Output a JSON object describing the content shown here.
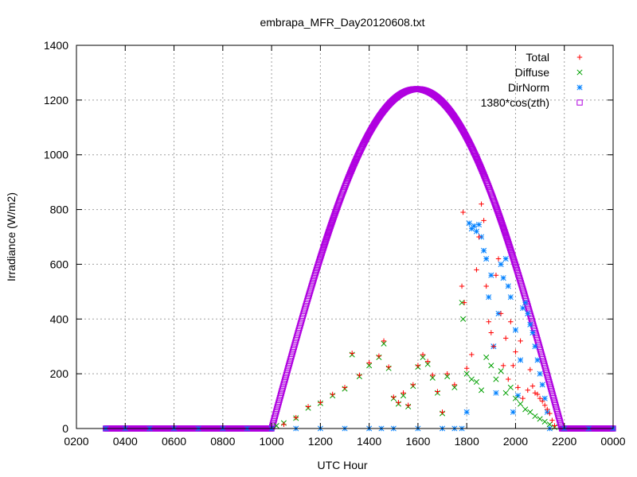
{
  "chart_data": {
    "type": "scatter",
    "title": "embrapa_MFR_Day20120608.txt",
    "xlabel": "UTC Hour",
    "ylabel": "Irradiance (W/m2)",
    "xlim": [
      2,
      24
    ],
    "ylim": [
      0,
      1400
    ],
    "xticks": [
      {
        "value": 2,
        "label": "0200"
      },
      {
        "value": 4,
        "label": "0400"
      },
      {
        "value": 6,
        "label": "0600"
      },
      {
        "value": 8,
        "label": "0800"
      },
      {
        "value": 10,
        "label": "1000"
      },
      {
        "value": 12,
        "label": "1200"
      },
      {
        "value": 14,
        "label": "1400"
      },
      {
        "value": 16,
        "label": "1600"
      },
      {
        "value": 18,
        "label": "1800"
      },
      {
        "value": 20,
        "label": "2000"
      },
      {
        "value": 22,
        "label": "2200"
      },
      {
        "value": 24,
        "label": "0000"
      }
    ],
    "yticks": [
      {
        "value": 0,
        "label": "0"
      },
      {
        "value": 200,
        "label": "200"
      },
      {
        "value": 400,
        "label": "400"
      },
      {
        "value": 600,
        "label": "600"
      },
      {
        "value": 800,
        "label": "800"
      },
      {
        "value": 1000,
        "label": "1000"
      },
      {
        "value": 1200,
        "label": "1200"
      },
      {
        "value": 1400,
        "label": "1400"
      }
    ],
    "grid": true,
    "legend_position": "top-right",
    "series": [
      {
        "name": "Total",
        "marker": "plus",
        "color": "#ff0000",
        "points": [
          [
            10.5,
            15
          ],
          [
            11.0,
            40
          ],
          [
            11.5,
            80
          ],
          [
            12.0,
            95
          ],
          [
            12.5,
            125
          ],
          [
            13.0,
            150
          ],
          [
            13.3,
            275
          ],
          [
            13.6,
            195
          ],
          [
            14.0,
            240
          ],
          [
            14.4,
            265
          ],
          [
            14.6,
            320
          ],
          [
            14.8,
            225
          ],
          [
            15.0,
            115
          ],
          [
            15.2,
            95
          ],
          [
            15.4,
            130
          ],
          [
            15.6,
            85
          ],
          [
            15.8,
            160
          ],
          [
            16.0,
            230
          ],
          [
            16.2,
            270
          ],
          [
            16.4,
            245
          ],
          [
            16.6,
            195
          ],
          [
            16.8,
            135
          ],
          [
            17.0,
            60
          ],
          [
            17.2,
            200
          ],
          [
            17.5,
            160
          ],
          [
            17.8,
            520
          ],
          [
            17.85,
            790
          ],
          [
            17.9,
            460
          ],
          [
            18.0,
            220
          ],
          [
            18.2,
            270
          ],
          [
            18.4,
            580
          ],
          [
            18.5,
            700
          ],
          [
            18.6,
            820
          ],
          [
            18.7,
            760
          ],
          [
            18.8,
            520
          ],
          [
            18.9,
            390
          ],
          [
            19.0,
            350
          ],
          [
            19.1,
            300
          ],
          [
            19.2,
            560
          ],
          [
            19.3,
            620
          ],
          [
            19.4,
            420
          ],
          [
            19.5,
            230
          ],
          [
            19.6,
            330
          ],
          [
            19.7,
            180
          ],
          [
            19.8,
            390
          ],
          [
            19.9,
            230
          ],
          [
            20.0,
            280
          ],
          [
            20.1,
            150
          ],
          [
            20.2,
            320
          ],
          [
            20.3,
            110
          ],
          [
            20.5,
            140
          ],
          [
            20.6,
            215
          ],
          [
            20.7,
            155
          ],
          [
            20.8,
            130
          ],
          [
            20.9,
            125
          ],
          [
            21.0,
            110
          ],
          [
            21.1,
            100
          ],
          [
            21.2,
            85
          ],
          [
            21.3,
            70
          ],
          [
            21.4,
            55
          ],
          [
            21.5,
            30
          ],
          [
            21.6,
            10
          ]
        ]
      },
      {
        "name": "Diffuse",
        "marker": "cross",
        "color": "#00a000",
        "points": [
          [
            10.2,
            10
          ],
          [
            10.5,
            20
          ],
          [
            11.0,
            38
          ],
          [
            11.5,
            75
          ],
          [
            12.0,
            92
          ],
          [
            12.5,
            120
          ],
          [
            13.0,
            145
          ],
          [
            13.3,
            270
          ],
          [
            13.6,
            190
          ],
          [
            14.0,
            230
          ],
          [
            14.4,
            260
          ],
          [
            14.6,
            310
          ],
          [
            14.8,
            220
          ],
          [
            15.0,
            110
          ],
          [
            15.2,
            90
          ],
          [
            15.4,
            120
          ],
          [
            15.6,
            80
          ],
          [
            15.8,
            155
          ],
          [
            16.0,
            225
          ],
          [
            16.2,
            260
          ],
          [
            16.4,
            235
          ],
          [
            16.6,
            185
          ],
          [
            16.8,
            130
          ],
          [
            17.0,
            55
          ],
          [
            17.2,
            190
          ],
          [
            17.5,
            150
          ],
          [
            17.8,
            460
          ],
          [
            17.85,
            400
          ],
          [
            18.0,
            200
          ],
          [
            18.2,
            180
          ],
          [
            18.4,
            170
          ],
          [
            18.6,
            140
          ],
          [
            18.8,
            260
          ],
          [
            19.0,
            230
          ],
          [
            19.2,
            180
          ],
          [
            19.4,
            210
          ],
          [
            19.6,
            130
          ],
          [
            19.8,
            150
          ],
          [
            20.0,
            110
          ],
          [
            20.2,
            90
          ],
          [
            20.4,
            70
          ],
          [
            20.6,
            60
          ],
          [
            20.8,
            45
          ],
          [
            21.0,
            35
          ],
          [
            21.2,
            25
          ],
          [
            21.4,
            15
          ],
          [
            21.6,
            5
          ]
        ]
      },
      {
        "name": "DirNorm",
        "marker": "star",
        "color": "#0080ff",
        "points": [
          [
            3.2,
            0
          ],
          [
            4,
            0
          ],
          [
            5,
            0
          ],
          [
            6,
            0
          ],
          [
            7,
            0
          ],
          [
            8,
            0
          ],
          [
            9,
            0
          ],
          [
            10,
            0
          ],
          [
            11,
            0
          ],
          [
            12,
            0
          ],
          [
            13,
            0
          ],
          [
            14,
            0
          ],
          [
            14.5,
            0
          ],
          [
            15,
            0
          ],
          [
            16,
            0
          ],
          [
            17,
            0
          ],
          [
            17.5,
            0
          ],
          [
            17.8,
            0
          ],
          [
            18.0,
            60
          ],
          [
            18.1,
            750
          ],
          [
            18.2,
            730
          ],
          [
            18.3,
            740
          ],
          [
            18.4,
            720
          ],
          [
            18.5,
            745
          ],
          [
            18.6,
            700
          ],
          [
            18.7,
            650
          ],
          [
            18.8,
            620
          ],
          [
            18.9,
            480
          ],
          [
            19.0,
            560
          ],
          [
            19.1,
            300
          ],
          [
            19.2,
            130
          ],
          [
            19.3,
            420
          ],
          [
            19.4,
            600
          ],
          [
            19.5,
            550
          ],
          [
            19.6,
            620
          ],
          [
            19.7,
            520
          ],
          [
            19.8,
            480
          ],
          [
            19.9,
            60
          ],
          [
            20.0,
            360
          ],
          [
            20.1,
            120
          ],
          [
            20.2,
            250
          ],
          [
            20.3,
            440
          ],
          [
            20.4,
            460
          ],
          [
            20.5,
            420
          ],
          [
            20.6,
            380
          ],
          [
            20.7,
            350
          ],
          [
            20.8,
            300
          ],
          [
            20.9,
            250
          ],
          [
            21.0,
            200
          ],
          [
            21.1,
            160
          ],
          [
            21.2,
            110
          ],
          [
            21.3,
            60
          ],
          [
            21.4,
            0
          ],
          [
            22,
            0
          ],
          [
            23,
            0
          ],
          [
            24,
            0
          ]
        ]
      },
      {
        "name": "1380*cos(zth)",
        "marker": "square",
        "color": "#b000e0",
        "peak_value": 1240,
        "peak_hour": 15.95,
        "rise_hour": 10.0,
        "set_hour": 21.9,
        "x_start": 3.2,
        "x_end": 24
      }
    ]
  }
}
